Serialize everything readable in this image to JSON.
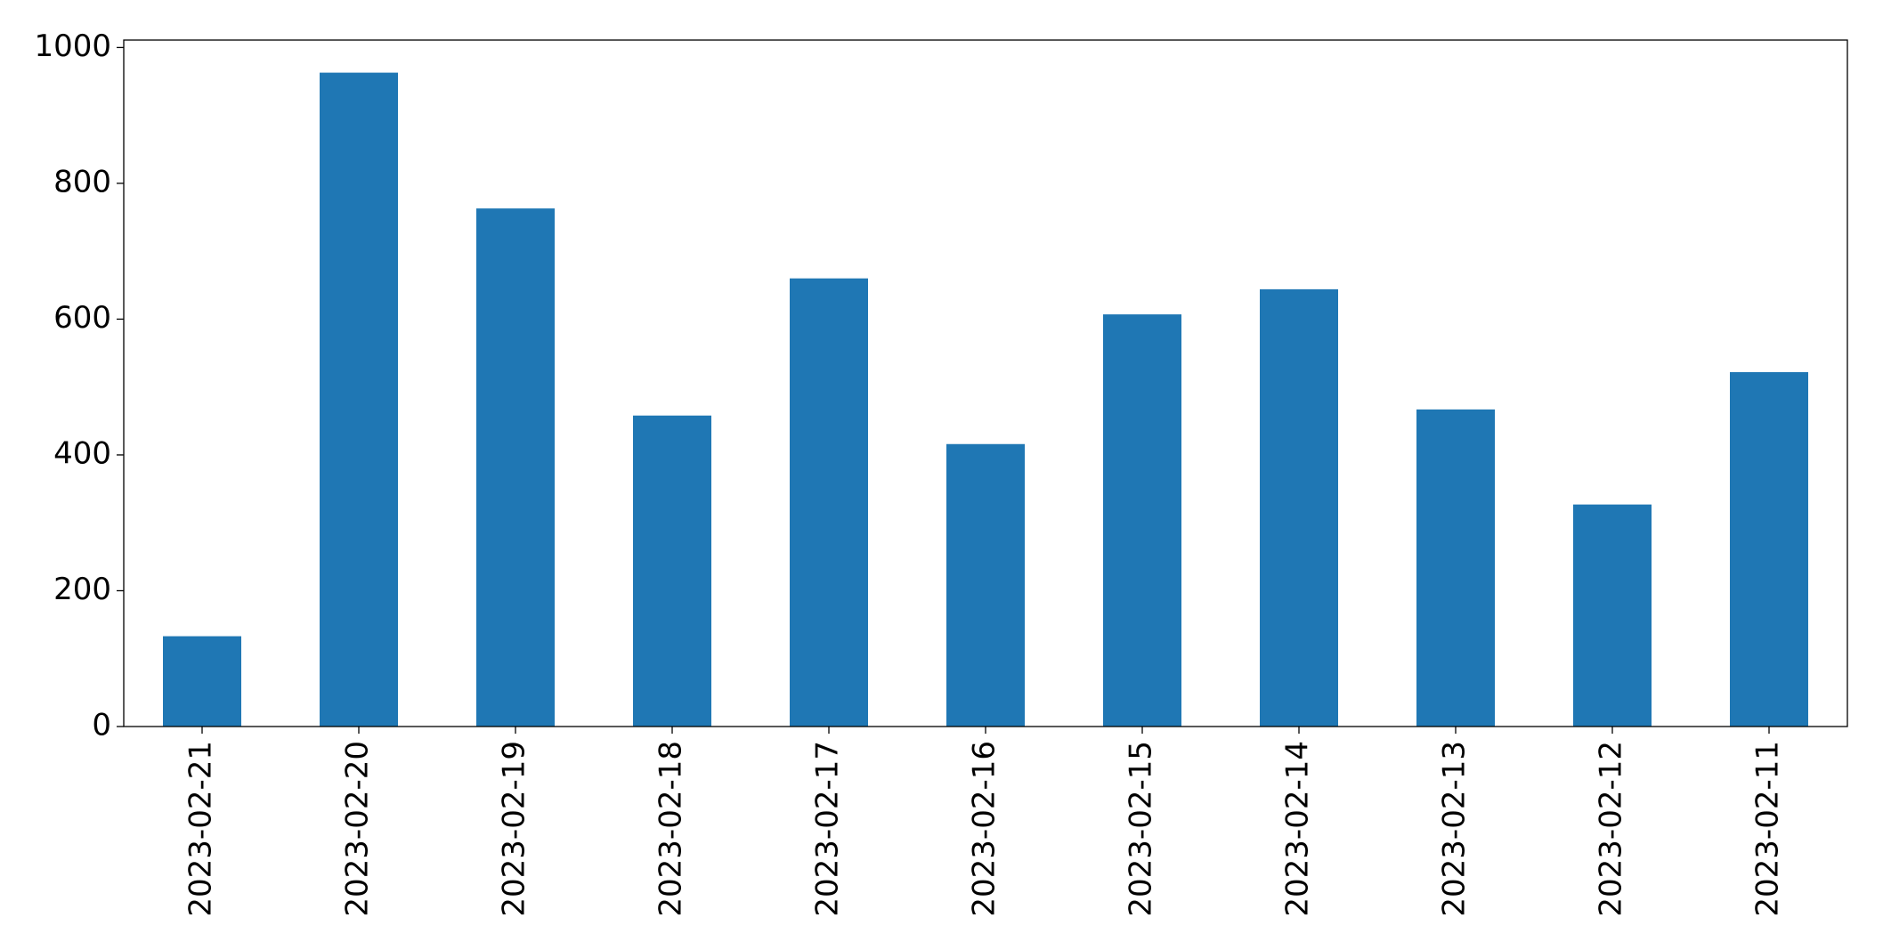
{
  "chart_data": {
    "type": "bar",
    "categories": [
      "2023-02-21",
      "2023-02-20",
      "2023-02-19",
      "2023-02-18",
      "2023-02-17",
      "2023-02-16",
      "2023-02-15",
      "2023-02-14",
      "2023-02-13",
      "2023-02-12",
      "2023-02-11"
    ],
    "values": [
      133,
      963,
      763,
      458,
      660,
      416,
      607,
      644,
      467,
      327,
      522
    ],
    "color": "#1f77b4",
    "ylim": [
      0,
      1011
    ],
    "yticks": [
      0,
      200,
      400,
      600,
      800,
      1000
    ],
    "grid": false
  }
}
